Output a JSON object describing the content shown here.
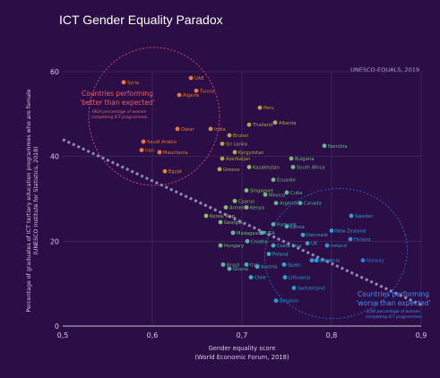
{
  "chart_data": {
    "type": "scatter",
    "title": "ICT Gender Equality Paradox",
    "source": "UNESCO-EQUALS, 2019",
    "xlabel": "Gender equality score",
    "xlabel2": "(World Economic Forum, 2018)",
    "ylabel": "Percentage of graduates of ICT tertiary education programmes who are female",
    "ylabel2": "(UNESCO Institute for Statistics, 2018)",
    "xlim": [
      0.5,
      0.9
    ],
    "ylim": [
      0,
      60
    ],
    "xticks": [
      "0,5",
      "0,6",
      "0,7",
      "0,8",
      "0,9"
    ],
    "yticks": [
      "0",
      "20",
      "40",
      "60"
    ],
    "grid": true,
    "trendline": {
      "x": [
        0.5,
        0.9
      ],
      "y": [
        44,
        5
      ]
    },
    "annotations": {
      "better": {
        "title1": "Countries performing",
        "title2": "'better than expected'",
        "sub1": "HIGH percentage of women",
        "sub2": "completing ICT programmes"
      },
      "worse": {
        "title1": "Countries performing",
        "title2": "'worse than expected'",
        "sub1": "LOW percentage of women",
        "sub2": "completing ICT programmes"
      }
    },
    "points": [
      {
        "label": "Syria",
        "x": 0.568,
        "y": 57.5
      },
      {
        "label": "UAE",
        "x": 0.643,
        "y": 58.5
      },
      {
        "label": "Tunsia",
        "x": 0.649,
        "y": 55.5
      },
      {
        "label": "Algeria",
        "x": 0.63,
        "y": 54.5
      },
      {
        "label": "Oatar",
        "x": 0.628,
        "y": 46.5
      },
      {
        "label": "India",
        "x": 0.665,
        "y": 46.5
      },
      {
        "label": "Saudi Arabia",
        "x": 0.59,
        "y": 43.5
      },
      {
        "label": "Iran",
        "x": 0.588,
        "y": 41.5
      },
      {
        "label": "Mauritania",
        "x": 0.608,
        "y": 41.0
      },
      {
        "label": "Egypt",
        "x": 0.614,
        "y": 36.5
      },
      {
        "label": "Peru",
        "x": 0.72,
        "y": 51.5
      },
      {
        "label": "Thailand",
        "x": 0.708,
        "y": 47.5
      },
      {
        "label": "Albania",
        "x": 0.737,
        "y": 48.0
      },
      {
        "label": "Brunei",
        "x": 0.686,
        "y": 45.0
      },
      {
        "label": "Sri Lanka",
        "x": 0.678,
        "y": 43.0
      },
      {
        "label": "Kyrgyzstan",
        "x": 0.692,
        "y": 41.0
      },
      {
        "label": "Azerbaijan",
        "x": 0.678,
        "y": 39.5
      },
      {
        "label": "Namibia",
        "x": 0.792,
        "y": 42.5
      },
      {
        "label": "Bulgaria",
        "x": 0.755,
        "y": 39.5
      },
      {
        "label": "Kazakhstan",
        "x": 0.708,
        "y": 37.5
      },
      {
        "label": "Greece",
        "x": 0.675,
        "y": 37.0
      },
      {
        "label": "South Africa",
        "x": 0.757,
        "y": 37.5
      },
      {
        "label": "Ecuador",
        "x": 0.735,
        "y": 34.5
      },
      {
        "label": "Singapore",
        "x": 0.705,
        "y": 32.0
      },
      {
        "label": "Mexico",
        "x": 0.726,
        "y": 31.0
      },
      {
        "label": "Cuba",
        "x": 0.75,
        "y": 31.5
      },
      {
        "label": "Cyprus",
        "x": 0.692,
        "y": 29.5
      },
      {
        "label": "Argentina",
        "x": 0.738,
        "y": 29.0
      },
      {
        "label": "Canada",
        "x": 0.765,
        "y": 29.0
      },
      {
        "label": "Armenia",
        "x": 0.682,
        "y": 28.0
      },
      {
        "label": "Kenya",
        "x": 0.705,
        "y": 28.0
      },
      {
        "label": "Korea, Rep.",
        "x": 0.66,
        "y": 26.0
      },
      {
        "label": "Sweden",
        "x": 0.822,
        "y": 26.0
      },
      {
        "label": "Georgia",
        "x": 0.676,
        "y": 24.5
      },
      {
        "label": "Portugal",
        "x": 0.735,
        "y": 24.0
      },
      {
        "label": "Latvia",
        "x": 0.75,
        "y": 23.5
      },
      {
        "label": "New Zealand",
        "x": 0.8,
        "y": 22.5
      },
      {
        "label": "Madagascar",
        "x": 0.69,
        "y": 22.0
      },
      {
        "label": "USA",
        "x": 0.722,
        "y": 22.0
      },
      {
        "label": "Denmark",
        "x": 0.768,
        "y": 21.5
      },
      {
        "label": "Croatia",
        "x": 0.706,
        "y": 20.0
      },
      {
        "label": "Costa Rica",
        "x": 0.735,
        "y": 19.0
      },
      {
        "label": "UK",
        "x": 0.773,
        "y": 19.5
      },
      {
        "label": "Ireland",
        "x": 0.795,
        "y": 19.0
      },
      {
        "label": "Finland",
        "x": 0.821,
        "y": 20.5
      },
      {
        "label": "Hungary",
        "x": 0.676,
        "y": 19.0
      },
      {
        "label": "Poland",
        "x": 0.73,
        "y": 17.0
      },
      {
        "label": "France",
        "x": 0.778,
        "y": 15.5
      },
      {
        "label": "Slovenia",
        "x": 0.783,
        "y": 15.5
      },
      {
        "label": "Norway",
        "x": 0.835,
        "y": 15.5
      },
      {
        "label": "Italy",
        "x": 0.705,
        "y": 14.5
      },
      {
        "label": "Brazil",
        "x": 0.679,
        "y": 14.5
      },
      {
        "label": "Ghana",
        "x": 0.686,
        "y": 13.5
      },
      {
        "label": "Austria",
        "x": 0.717,
        "y": 14.0
      },
      {
        "label": "Spain",
        "x": 0.747,
        "y": 14.5
      },
      {
        "label": "Chile",
        "x": 0.71,
        "y": 11.5
      },
      {
        "label": "Lithuania",
        "x": 0.748,
        "y": 11.5
      },
      {
        "label": "Switzerland",
        "x": 0.758,
        "y": 9.0
      },
      {
        "label": "Belgium",
        "x": 0.738,
        "y": 6.0
      }
    ]
  }
}
